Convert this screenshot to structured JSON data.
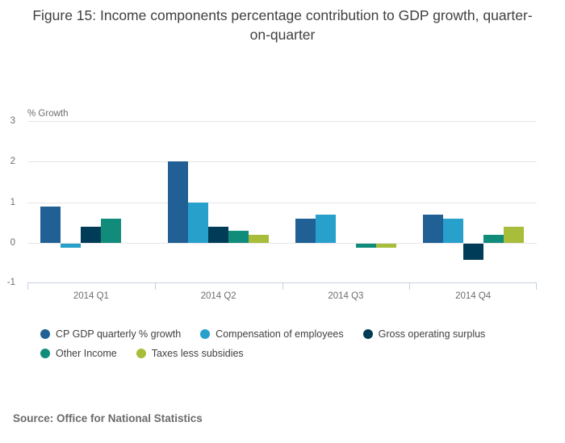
{
  "source": "Source: Office for National Statistics",
  "chart_data": {
    "type": "bar",
    "title": "Figure 15: Income components percentage contribution to GDP growth, quarter-on-quarter",
    "ylabel": "% Growth",
    "xlabel": "",
    "categories": [
      "2014 Q1",
      "2014 Q2",
      "2014 Q3",
      "2014 Q4"
    ],
    "series": [
      {
        "name": "CP GDP quarterly % growth",
        "color": "#206095",
        "values": [
          0.9,
          2.0,
          0.6,
          0.7
        ]
      },
      {
        "name": "Compensation of employees",
        "color": "#27A0CC",
        "values": [
          -0.1,
          1.0,
          0.7,
          0.6
        ]
      },
      {
        "name": "Gross operating surplus",
        "color": "#003C57",
        "values": [
          0.4,
          0.4,
          0.0,
          -0.4
        ]
      },
      {
        "name": "Other Income",
        "color": "#118C7B",
        "values": [
          0.6,
          0.3,
          -0.1,
          0.2
        ]
      },
      {
        "name": "Taxes less subsidies",
        "color": "#A8BD3A",
        "values": [
          0.0,
          0.2,
          -0.1,
          0.4
        ]
      }
    ],
    "ylim": [
      -1,
      3
    ],
    "yticks": [
      3,
      2,
      1,
      0,
      -1
    ],
    "grid": true,
    "legend_position": "bottom",
    "grid_color": "#e6e6e6",
    "axis_color": "#c4d1df"
  }
}
